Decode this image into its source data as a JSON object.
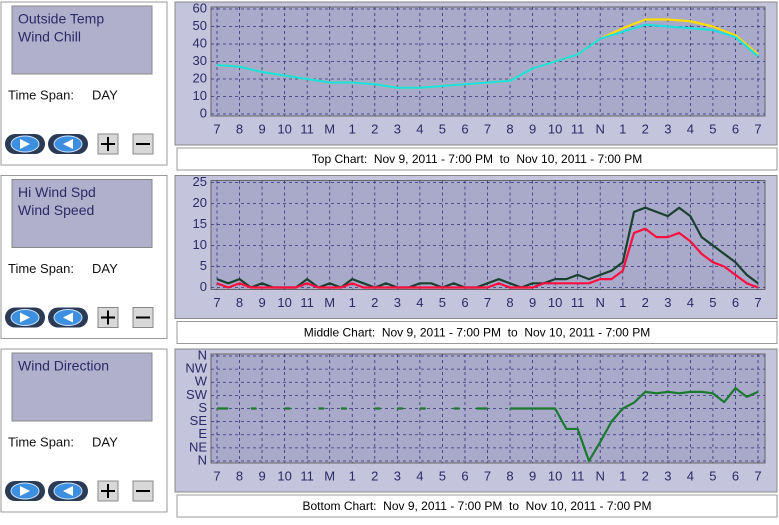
{
  "panels": [
    {
      "time_span_label": "Time Span:",
      "time_span": "DAY"
    },
    {
      "time_span_label": "Time Span:",
      "time_span": "DAY"
    },
    {
      "time_span_label": "Time Span:",
      "time_span": "DAY"
    }
  ],
  "chart_data": [
    {
      "type": "line",
      "caption": "Top Chart:  Nov 9, 2011 - 7:00 PM  to  Nov 10, 2011 - 7:00 PM",
      "x": [
        0,
        1,
        2,
        3,
        4,
        5,
        6,
        7,
        8,
        9,
        10,
        11,
        12,
        13,
        14,
        15,
        16,
        17,
        18,
        19,
        20,
        21,
        22,
        23,
        24
      ],
      "xlim": [
        0,
        24
      ],
      "xticks": [
        {
          "value": 0,
          "label": "7"
        },
        {
          "value": 1,
          "label": "8"
        },
        {
          "value": 2,
          "label": "9"
        },
        {
          "value": 3,
          "label": "10"
        },
        {
          "value": 4,
          "label": "11"
        },
        {
          "value": 5,
          "label": "M"
        },
        {
          "value": 6,
          "label": "1"
        },
        {
          "value": 7,
          "label": "2"
        },
        {
          "value": 8,
          "label": "3"
        },
        {
          "value": 9,
          "label": "4"
        },
        {
          "value": 10,
          "label": "5"
        },
        {
          "value": 11,
          "label": "6"
        },
        {
          "value": 12,
          "label": "7"
        },
        {
          "value": 13,
          "label": "8"
        },
        {
          "value": 14,
          "label": "9"
        },
        {
          "value": 15,
          "label": "10"
        },
        {
          "value": 16,
          "label": "11"
        },
        {
          "value": 17,
          "label": "N"
        },
        {
          "value": 18,
          "label": "1"
        },
        {
          "value": 19,
          "label": "2"
        },
        {
          "value": 20,
          "label": "3"
        },
        {
          "value": 21,
          "label": "4"
        },
        {
          "value": 22,
          "label": "5"
        },
        {
          "value": 23,
          "label": "6"
        },
        {
          "value": 24,
          "label": "7"
        }
      ],
      "ylim": [
        0,
        60
      ],
      "yticks": [
        0,
        10,
        20,
        30,
        40,
        50,
        60
      ],
      "grid": true,
      "series": [
        {
          "name": "Outside Temp",
          "color": "#ffdd00",
          "values": [
            28,
            27,
            24,
            22,
            20,
            18,
            18,
            17,
            15,
            15,
            16,
            17,
            18,
            19,
            26,
            30,
            34,
            43,
            49,
            54,
            54,
            53,
            50,
            45,
            34
          ]
        },
        {
          "name": "Wind Chill",
          "color": "#22dddd",
          "values": [
            28,
            27,
            24,
            22,
            20,
            18,
            18,
            17,
            15,
            15,
            16,
            17,
            18,
            19,
            26,
            30,
            34,
            43,
            47,
            51,
            50,
            49,
            48,
            44,
            33
          ]
        }
      ]
    },
    {
      "type": "line",
      "caption": "Middle Chart:  Nov 9, 2011 - 7:00 PM  to  Nov 10, 2011 - 7:00 PM",
      "x": [
        0,
        0.5,
        1,
        1.5,
        2,
        2.5,
        3,
        3.5,
        4,
        4.5,
        5,
        5.5,
        6,
        6.5,
        7,
        7.5,
        8,
        8.5,
        9,
        9.5,
        10,
        10.5,
        11,
        11.5,
        12,
        12.5,
        13,
        13.5,
        14,
        14.5,
        15,
        15.5,
        16,
        16.5,
        17,
        17.5,
        18,
        18.5,
        19,
        19.5,
        20,
        20.5,
        21,
        21.5,
        22,
        22.5,
        23,
        23.5,
        24
      ],
      "xlim": [
        0,
        24
      ],
      "xticks": [
        {
          "value": 0,
          "label": "7"
        },
        {
          "value": 1,
          "label": "8"
        },
        {
          "value": 2,
          "label": "9"
        },
        {
          "value": 3,
          "label": "10"
        },
        {
          "value": 4,
          "label": "11"
        },
        {
          "value": 5,
          "label": "M"
        },
        {
          "value": 6,
          "label": "1"
        },
        {
          "value": 7,
          "label": "2"
        },
        {
          "value": 8,
          "label": "3"
        },
        {
          "value": 9,
          "label": "4"
        },
        {
          "value": 10,
          "label": "5"
        },
        {
          "value": 11,
          "label": "6"
        },
        {
          "value": 12,
          "label": "7"
        },
        {
          "value": 13,
          "label": "8"
        },
        {
          "value": 14,
          "label": "9"
        },
        {
          "value": 15,
          "label": "10"
        },
        {
          "value": 16,
          "label": "11"
        },
        {
          "value": 17,
          "label": "N"
        },
        {
          "value": 18,
          "label": "1"
        },
        {
          "value": 19,
          "label": "2"
        },
        {
          "value": 20,
          "label": "3"
        },
        {
          "value": 21,
          "label": "4"
        },
        {
          "value": 22,
          "label": "5"
        },
        {
          "value": 23,
          "label": "6"
        },
        {
          "value": 24,
          "label": "7"
        }
      ],
      "ylim": [
        0,
        25
      ],
      "yticks": [
        0,
        5,
        10,
        15,
        20,
        25
      ],
      "grid": true,
      "series": [
        {
          "name": "Hi Wind Spd",
          "color": "#1a4030",
          "values": [
            2,
            1,
            2,
            0,
            1,
            0,
            0,
            0,
            2,
            0,
            1,
            0,
            2,
            1,
            0,
            1,
            0,
            0,
            1,
            1,
            0,
            1,
            0,
            0,
            1,
            2,
            1,
            0,
            1,
            1,
            2,
            2,
            3,
            2,
            3,
            4,
            6,
            18,
            19,
            18,
            17,
            19,
            17,
            12,
            10,
            8,
            6,
            3,
            1
          ]
        },
        {
          "name": "Wind Speed",
          "color": "#ff1040",
          "values": [
            1,
            0,
            1,
            0,
            0,
            0,
            0,
            0,
            1,
            0,
            0,
            0,
            1,
            0,
            0,
            0,
            0,
            0,
            0,
            0,
            0,
            0,
            0,
            0,
            0,
            1,
            0,
            0,
            0,
            1,
            1,
            1,
            1,
            1,
            2,
            2,
            4,
            13,
            14,
            12,
            12,
            13,
            11,
            8,
            6,
            5,
            3,
            1,
            0
          ]
        }
      ]
    },
    {
      "type": "line",
      "caption": "Bottom Chart:  Nov 9, 2011 - 7:00 PM  to  Nov 10, 2011 - 7:00 PM",
      "x": [
        0,
        0.5,
        1,
        1.5,
        2,
        2.5,
        3,
        3.5,
        4,
        4.5,
        5,
        5.5,
        6,
        6.5,
        7,
        7.5,
        8,
        8.5,
        9,
        9.5,
        10,
        10.5,
        11,
        11.5,
        12,
        12.5,
        13,
        13.5,
        14,
        14.5,
        15,
        15.5,
        16,
        16.5,
        17,
        17.5,
        18,
        18.5,
        19,
        19.5,
        20,
        20.5,
        21,
        21.5,
        22,
        22.5,
        23,
        23.5,
        24
      ],
      "xlim": [
        0,
        24
      ],
      "xticks": [
        {
          "value": 0,
          "label": "7"
        },
        {
          "value": 1,
          "label": "8"
        },
        {
          "value": 2,
          "label": "9"
        },
        {
          "value": 3,
          "label": "10"
        },
        {
          "value": 4,
          "label": "11"
        },
        {
          "value": 5,
          "label": "M"
        },
        {
          "value": 6,
          "label": "1"
        },
        {
          "value": 7,
          "label": "2"
        },
        {
          "value": 8,
          "label": "3"
        },
        {
          "value": 9,
          "label": "4"
        },
        {
          "value": 10,
          "label": "5"
        },
        {
          "value": 11,
          "label": "6"
        },
        {
          "value": 12,
          "label": "7"
        },
        {
          "value": 13,
          "label": "8"
        },
        {
          "value": 14,
          "label": "9"
        },
        {
          "value": 15,
          "label": "10"
        },
        {
          "value": 16,
          "label": "11"
        },
        {
          "value": 17,
          "label": "N"
        },
        {
          "value": 18,
          "label": "1"
        },
        {
          "value": 19,
          "label": "2"
        },
        {
          "value": 20,
          "label": "3"
        },
        {
          "value": 21,
          "label": "4"
        },
        {
          "value": 22,
          "label": "5"
        },
        {
          "value": 23,
          "label": "6"
        },
        {
          "value": 24,
          "label": "7"
        }
      ],
      "ylim": [
        0,
        360
      ],
      "yticks": [
        {
          "value": 0,
          "label": "N"
        },
        {
          "value": 45,
          "label": "NE"
        },
        {
          "value": 90,
          "label": "E"
        },
        {
          "value": 135,
          "label": "SE"
        },
        {
          "value": 180,
          "label": "S"
        },
        {
          "value": 225,
          "label": "SW"
        },
        {
          "value": 270,
          "label": "W"
        },
        {
          "value": 315,
          "label": "NW"
        },
        {
          "value": 360,
          "label": "N"
        }
      ],
      "grid": true,
      "series": [
        {
          "name": "Wind Direction",
          "color": "#1a7a30",
          "values": [
            180,
            180,
            null,
            180,
            null,
            null,
            180,
            null,
            null,
            180,
            null,
            180,
            null,
            null,
            180,
            null,
            180,
            null,
            180,
            null,
            null,
            180,
            null,
            180,
            180,
            null,
            180,
            180,
            180,
            180,
            180,
            110,
            110,
            0,
            65,
            135,
            180,
            200,
            237,
            232,
            237,
            232,
            237,
            237,
            232,
            202,
            250,
            220,
            237
          ]
        }
      ]
    }
  ]
}
